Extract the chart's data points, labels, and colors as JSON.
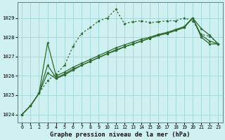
{
  "title": "Graphe pression niveau de la mer (hPa)",
  "bg_color": "#cff0f0",
  "grid_color": "#a0d8d8",
  "line_color": "#2d6a2d",
  "xlim": [
    -0.5,
    23.5
  ],
  "ylim": [
    1023.6,
    1029.8
  ],
  "yticks": [
    1024,
    1025,
    1026,
    1027,
    1028,
    1029
  ],
  "xticks": [
    0,
    1,
    2,
    3,
    4,
    5,
    6,
    7,
    8,
    9,
    10,
    11,
    12,
    13,
    14,
    15,
    16,
    17,
    18,
    19,
    20,
    21,
    22,
    23
  ],
  "series": [
    {
      "style": "dotted",
      "data": [
        1024.0,
        1024.45,
        1025.1,
        1025.75,
        1026.1,
        1026.55,
        1027.55,
        1028.2,
        1028.5,
        1028.85,
        1029.0,
        1029.45,
        1028.7,
        1028.8,
        1028.85,
        1028.75,
        1028.8,
        1028.85,
        1028.85,
        1029.0,
        1028.85,
        1028.15,
        1028.05,
        1027.65
      ]
    },
    {
      "style": "solid",
      "data": [
        1024.0,
        1024.45,
        1025.1,
        1026.15,
        1025.85,
        1026.05,
        1026.3,
        1026.55,
        1026.75,
        1026.95,
        1027.15,
        1027.3,
        1027.5,
        1027.65,
        1027.8,
        1027.95,
        1028.1,
        1028.2,
        1028.35,
        1028.5,
        1029.0,
        1028.45,
        1028.1,
        1027.65
      ]
    },
    {
      "style": "solid",
      "data": [
        1024.0,
        1024.45,
        1025.1,
        1026.55,
        1025.9,
        1026.1,
        1026.35,
        1026.55,
        1026.75,
        1026.95,
        1027.15,
        1027.35,
        1027.5,
        1027.65,
        1027.8,
        1027.95,
        1028.1,
        1028.2,
        1028.35,
        1028.5,
        1029.0,
        1028.1,
        1027.8,
        1027.65
      ]
    },
    {
      "style": "solid",
      "data": [
        1024.0,
        1024.45,
        1025.1,
        1027.7,
        1026.0,
        1026.2,
        1026.45,
        1026.65,
        1026.85,
        1027.05,
        1027.25,
        1027.45,
        1027.6,
        1027.75,
        1027.9,
        1028.0,
        1028.15,
        1028.25,
        1028.4,
        1028.55,
        1029.0,
        1028.0,
        1027.65,
        1027.65
      ]
    }
  ]
}
